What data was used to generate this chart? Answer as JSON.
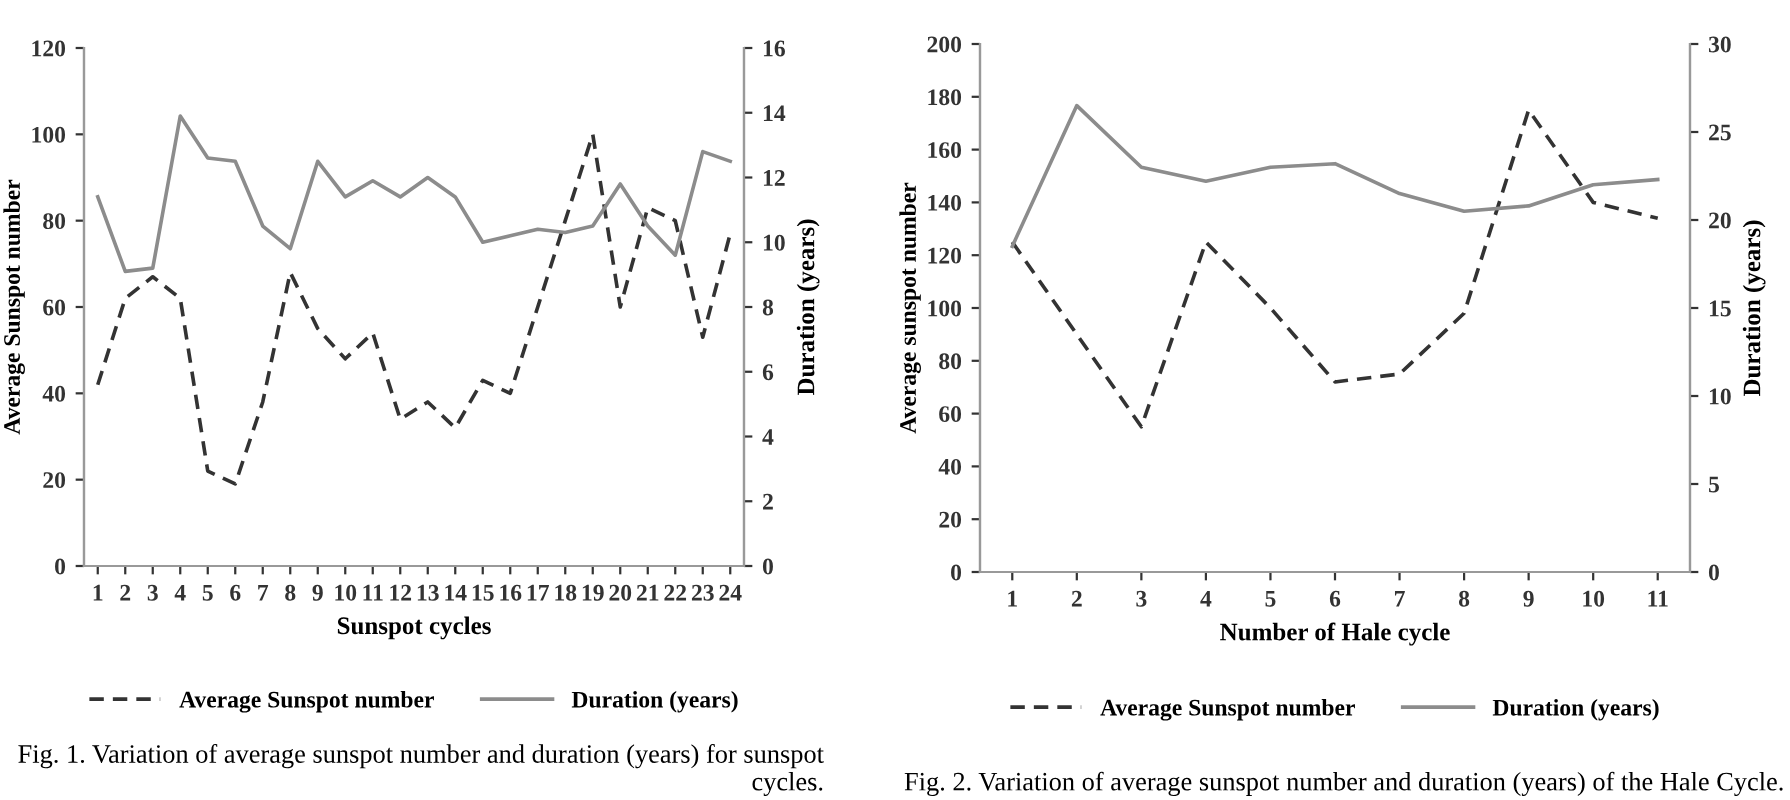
{
  "chart_data": [
    {
      "type": "line",
      "xlabel": "Sunspot cycles",
      "ylabel": "Average Sunspot number",
      "y2label": "Duration (years)",
      "categories": [
        "1",
        "2",
        "3",
        "4",
        "5",
        "6",
        "7",
        "8",
        "9",
        "10",
        "11",
        "12",
        "13",
        "14",
        "15",
        "16",
        "17",
        "18",
        "19",
        "20",
        "21",
        "22",
        "23",
        "24"
      ],
      "series": [
        {
          "name": "Average Sunspot number",
          "color": "#333333",
          "line_style": "dashed",
          "values": [
            42,
            62,
            67,
            62,
            22,
            19,
            38,
            68,
            55,
            48,
            54,
            34,
            38,
            32,
            43,
            40,
            60,
            80,
            100,
            60,
            83,
            80,
            53,
            77
          ]
        },
        {
          "name": "Duration (years)",
          "color": "#8c8c8c",
          "line_style": "solid",
          "axis": "y2",
          "values": [
            11.4,
            9.1,
            9.2,
            13.9,
            12.6,
            12.5,
            10.5,
            9.8,
            12.5,
            11.4,
            11.9,
            11.4,
            12.0,
            11.4,
            10.0,
            10.2,
            10.4,
            10.3,
            10.5,
            11.8,
            10.5,
            9.6,
            12.8,
            12.5
          ]
        }
      ],
      "ylim": [
        0,
        120
      ],
      "yticks": [
        0,
        20,
        40,
        60,
        80,
        100,
        120
      ],
      "y2lim": [
        0,
        16
      ],
      "y2ticks": [
        0,
        2,
        4,
        6,
        8,
        10,
        12,
        14,
        16
      ],
      "legend": "bottom",
      "grid": false,
      "annotations": [
        "Fig. 1. Variation of average sunspot number and duration (years) for sunspot cycles."
      ]
    },
    {
      "type": "line",
      "xlabel": "Number of Hale cycle",
      "ylabel": "Average sunspot number",
      "y2label": "Duration (years)",
      "categories": [
        "1",
        "2",
        "3",
        "4",
        "5",
        "6",
        "7",
        "8",
        "9",
        "10",
        "11"
      ],
      "series": [
        {
          "name": "Average Sunspot number",
          "color": "#333333",
          "line_style": "dashed",
          "values": [
            125,
            90,
            55,
            125,
            100,
            72,
            75,
            98,
            175,
            140,
            134
          ]
        },
        {
          "name": "Duration (years)",
          "color": "#8c8c8c",
          "line_style": "solid",
          "axis": "y2",
          "values": [
            18.5,
            26.5,
            23.0,
            22.2,
            23.0,
            23.2,
            21.5,
            20.5,
            20.8,
            22.0,
            22.3
          ]
        }
      ],
      "ylim": [
        0,
        200
      ],
      "yticks": [
        0,
        20,
        40,
        60,
        80,
        100,
        120,
        140,
        160,
        180,
        200
      ],
      "y2lim": [
        0,
        30
      ],
      "y2ticks": [
        0,
        5,
        10,
        15,
        20,
        25,
        30
      ],
      "legend": "bottom",
      "grid": false,
      "annotations": [
        "Fig. 2. Variation of average sunspot number and duration (years) of the Hale Cycle."
      ]
    }
  ]
}
